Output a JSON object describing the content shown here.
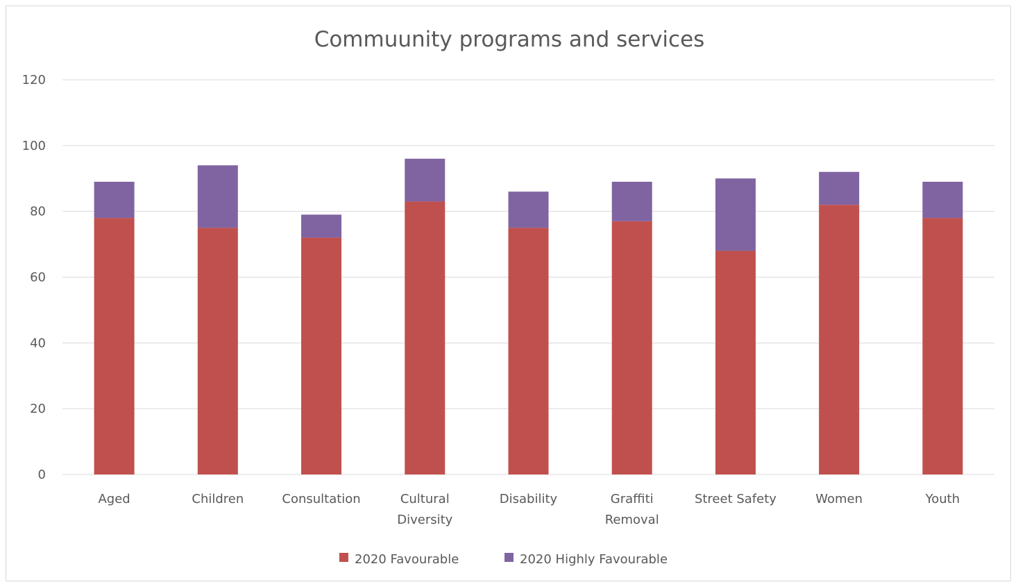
{
  "chart_data": {
    "type": "bar",
    "stacked": true,
    "title": "Commuunity programs and services",
    "xlabel": "",
    "ylabel": "",
    "ylim": [
      0,
      120
    ],
    "yticks": [
      0,
      20,
      40,
      60,
      80,
      100,
      120
    ],
    "grid": true,
    "legend_position": "bottom",
    "categories": [
      [
        "Aged"
      ],
      [
        "Children"
      ],
      [
        "Consultation"
      ],
      [
        "Cultural",
        "Diversity"
      ],
      [
        "Disability"
      ],
      [
        "Graffiti",
        "Removal"
      ],
      [
        "Street Safety"
      ],
      [
        "Women"
      ],
      [
        "Youth"
      ]
    ],
    "series": [
      {
        "name": "2020 Favourable",
        "color": "#c0504d",
        "values": [
          78,
          75,
          72,
          83,
          75,
          77,
          68,
          82,
          78
        ]
      },
      {
        "name": "2020 Highly Favourable",
        "color": "#8064a2",
        "values": [
          11,
          19,
          7,
          13,
          11,
          12,
          22,
          10,
          11
        ]
      }
    ]
  }
}
